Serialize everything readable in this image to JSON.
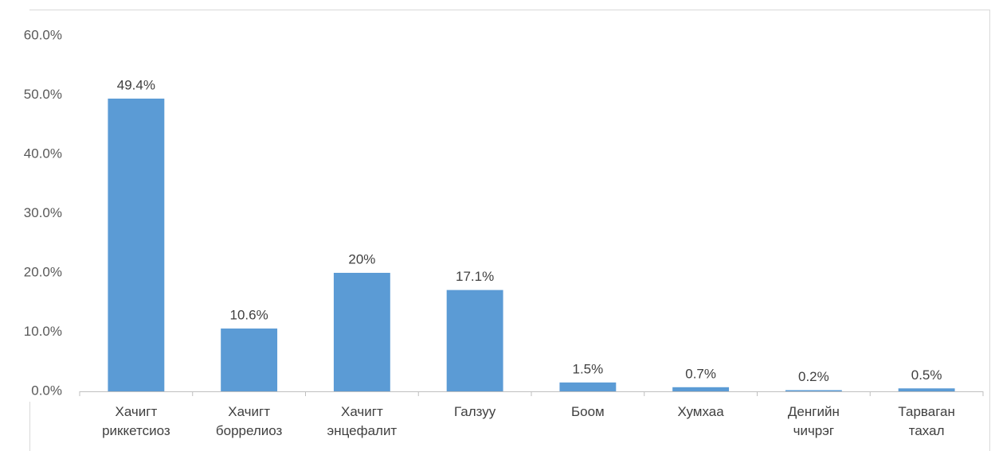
{
  "chart_data": {
    "type": "bar",
    "categories": [
      "Хачигт риккетсиоз",
      "Хачигт боррелиоз",
      "Хачигт энцефалит",
      "Галзуу",
      "Боом",
      "Хумхаа",
      "Денгийн чичрэг",
      "Тарваган тахал"
    ],
    "values": [
      49.4,
      10.6,
      20,
      17.1,
      1.5,
      0.7,
      0.2,
      0.5
    ],
    "value_labels": [
      "49.4%",
      "10.6%",
      "20%",
      "17.1%",
      "1.5%",
      "0.7%",
      "0.2%",
      "0.5%"
    ],
    "color": "#5b9bd5",
    "ylim": [
      0,
      60
    ],
    "yticks": [
      {
        "value": 0,
        "label": "0.0%"
      },
      {
        "value": 10,
        "label": "10.0%"
      },
      {
        "value": 20,
        "label": "20.0%"
      },
      {
        "value": 30,
        "label": "30.0%"
      },
      {
        "value": 40,
        "label": "40.0%"
      },
      {
        "value": 50,
        "label": "50.0%"
      },
      {
        "value": 60,
        "label": "60.0%"
      }
    ],
    "grid": false
  }
}
